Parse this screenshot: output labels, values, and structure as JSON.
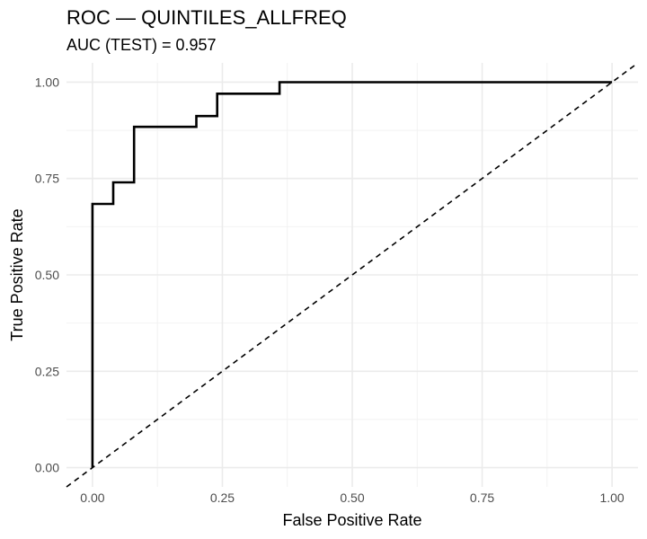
{
  "chart_data": {
    "type": "line",
    "title": "ROC — QUINTILES_ALLFREQ",
    "subtitle": "AUC (TEST) = 0.957",
    "xlabel": "False Positive Rate",
    "ylabel": "True Positive Rate",
    "xlim": [
      -0.05,
      1.05
    ],
    "ylim": [
      -0.05,
      1.05
    ],
    "x_ticks": [
      0,
      0.25,
      0.5,
      0.75,
      1
    ],
    "x_tick_labels": [
      "0.00",
      "0.25",
      "0.50",
      "0.75",
      "1.00"
    ],
    "y_ticks": [
      0,
      0.25,
      0.5,
      0.75,
      1
    ],
    "y_tick_labels": [
      "0.00",
      "0.25",
      "0.50",
      "0.75",
      "1.00"
    ],
    "grid": true,
    "series": [
      {
        "x": [
          0,
          0,
          0.04,
          0.04,
          0.08,
          0.08,
          0.2,
          0.2,
          0.24,
          0.24,
          0.36,
          0.36,
          1.0
        ],
        "y": [
          0,
          0.684,
          0.684,
          0.74,
          0.74,
          0.884,
          0.884,
          0.912,
          0.912,
          0.97,
          0.97,
          1.0,
          1.0
        ],
        "color": "#000000",
        "style": "step"
      },
      {
        "x": [
          -0.05,
          1.05
        ],
        "y": [
          -0.05,
          1.05
        ],
        "color": "#000000",
        "style": "dashed"
      }
    ]
  }
}
